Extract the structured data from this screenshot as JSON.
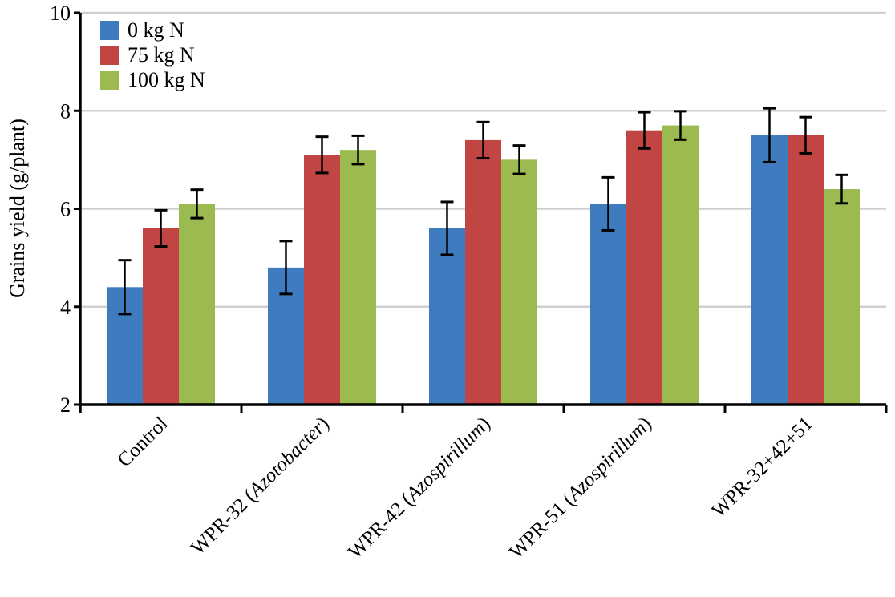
{
  "chart_data": {
    "type": "bar",
    "title": "",
    "xlabel": "",
    "ylabel": "Grains yield (g/plant)",
    "ylim": [
      2,
      10
    ],
    "yticks": [
      2,
      4,
      6,
      8,
      10
    ],
    "grid": true,
    "legend_placement": "top-left",
    "categories": [
      {
        "plain": "Control",
        "italic": "",
        "suffix": ""
      },
      {
        "plain": "WPR-32 (",
        "italic": "Azotobacter",
        "suffix": ")"
      },
      {
        "plain": "WPR-42 (",
        "italic": "Azospirillum",
        "suffix": ")"
      },
      {
        "plain": "WPR-51 (",
        "italic": "Azospirillum",
        "suffix": ")"
      },
      {
        "plain": "WPR-32+42+51",
        "italic": "",
        "suffix": ""
      }
    ],
    "series": [
      {
        "name": "0 kg N",
        "color": "#3f7bbf",
        "values": [
          4.4,
          4.8,
          5.6,
          6.1,
          7.5
        ],
        "errors": [
          0.55,
          0.54,
          0.54,
          0.54,
          0.55
        ]
      },
      {
        "name": "75 kg N",
        "color": "#c04543",
        "values": [
          5.6,
          7.1,
          7.4,
          7.6,
          7.5
        ],
        "errors": [
          0.37,
          0.37,
          0.37,
          0.37,
          0.37
        ]
      },
      {
        "name": "100 kg N",
        "color": "#9bbb50",
        "values": [
          6.1,
          7.2,
          7.0,
          7.7,
          6.4
        ],
        "errors": [
          0.29,
          0.29,
          0.29,
          0.29,
          0.29
        ]
      }
    ]
  }
}
